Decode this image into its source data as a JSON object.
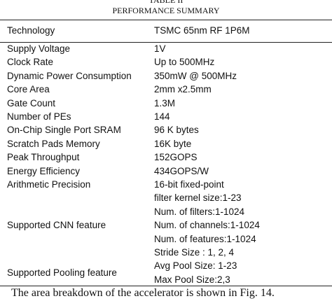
{
  "header": {
    "table_label": "TABLE II",
    "title": "PERFORMANCE SUMMARY"
  },
  "table": {
    "columns": [
      "Technology",
      "TSMC 65nm RF 1P6M"
    ],
    "rows": [
      [
        "Supply Voltage",
        "1V"
      ],
      [
        "Clock Rate",
        "Up to 500MHz"
      ],
      [
        "Dynamic Power Consumption",
        "350mW @ 500MHz"
      ],
      [
        "Core Area",
        "2mm x2.5mm"
      ],
      [
        "Gate Count",
        "1.3M"
      ],
      [
        "Number of PEs",
        "144"
      ],
      [
        "On-Chip Single Port SRAM",
        "96 K bytes"
      ],
      [
        "Scratch Pads Memory",
        "16K byte"
      ],
      [
        "Peak Throughput",
        "152GOPS"
      ],
      [
        "Energy Efficiency",
        "434GOPS/W"
      ],
      [
        "Arithmetic Precision",
        "16-bit fixed-point"
      ]
    ],
    "groups": [
      {
        "label": "Supported CNN feature",
        "values": [
          "filter kernel size:1-23",
          "Num. of filters:1-1024",
          "Num. of channels:1-1024",
          "Num. of features:1-1024",
          "Stride Size : 1, 2, 4"
        ]
      },
      {
        "label": "Supported Pooling feature",
        "values": [
          "Avg Pool Size: 1-23",
          "Max Pool Size:2,3"
        ]
      }
    ]
  },
  "body": {
    "paragraph": "The area breakdown of the accelerator is shown in Fig. 14."
  }
}
